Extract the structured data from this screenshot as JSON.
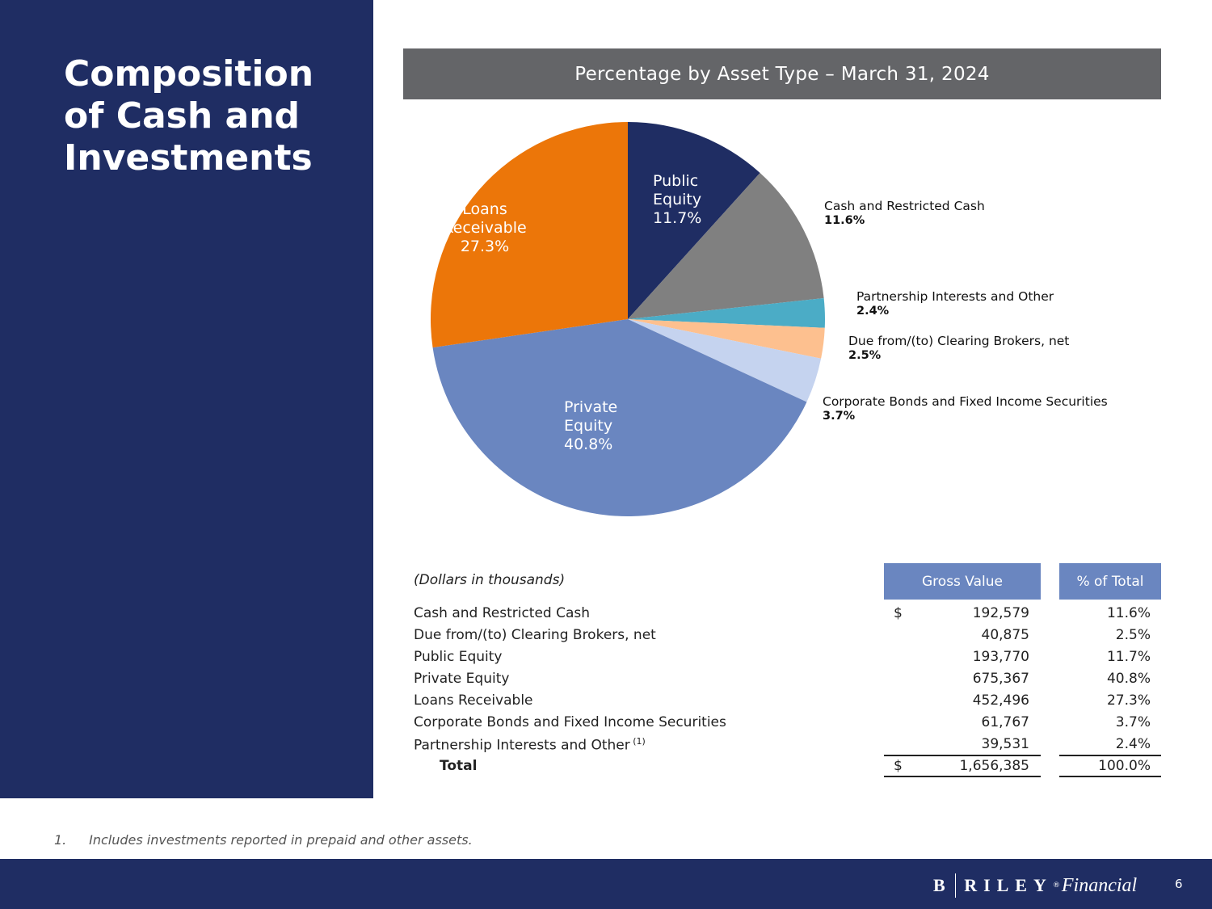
{
  "page": {
    "title": "Composition of Cash and Investments",
    "footnote_number": "1.",
    "footnote_text": "Includes investments reported in prepaid and other assets.",
    "page_number": "6"
  },
  "logo": {
    "letter": "B",
    "word": "RILEY",
    "mark": "®",
    "suffix": "Financial"
  },
  "colors": {
    "navy": "#1f2d63",
    "header_gray": "#646568",
    "table_head": "#6a86c0"
  },
  "chart_data": {
    "type": "pie",
    "title": "Percentage by Asset Type – March 31, 2024",
    "start_angle_deg": 0,
    "slices": [
      {
        "name": "Public Equity",
        "label_lines": [
          "Public",
          "Equity"
        ],
        "value": 11.7,
        "display": "11.7%",
        "color": "#1f2d63",
        "label_inside": true,
        "text_color": "#ffffff"
      },
      {
        "name": "Cash and Restricted Cash",
        "label_lines": [
          "Cash and Restricted Cash"
        ],
        "value": 11.6,
        "display": "11.6%",
        "color": "#808080",
        "label_inside": false
      },
      {
        "name": "Partnership Interests and Other",
        "label_lines": [
          "Partnership Interests and Other"
        ],
        "value": 2.4,
        "display": "2.4%",
        "color": "#4bacc6",
        "label_inside": false
      },
      {
        "name": "Due from/(to) Clearing Brokers, net",
        "label_lines": [
          "Due from/(to) Clearing Brokers, net"
        ],
        "value": 2.5,
        "display": "2.5%",
        "color": "#fdc08f",
        "label_inside": false
      },
      {
        "name": "Corporate Bonds and Fixed Income Securities",
        "label_lines": [
          "Corporate Bonds and Fixed Income Securities"
        ],
        "value": 3.7,
        "display": "3.7%",
        "color": "#c5d3ef",
        "label_inside": false
      },
      {
        "name": "Private Equity",
        "label_lines": [
          "Private",
          "Equity"
        ],
        "value": 40.8,
        "display": "40.8%",
        "color": "#6a86c0",
        "label_inside": true,
        "text_color": "#ffffff"
      },
      {
        "name": "Loans Receivable",
        "label_lines": [
          "Loans",
          "Receivable"
        ],
        "value": 27.3,
        "display": "27.3%",
        "color": "#ec7609",
        "label_inside": true,
        "text_color": "#ffffff"
      }
    ]
  },
  "table": {
    "note": "(Dollars in thousands)",
    "headers": {
      "gross": "Gross Value",
      "pct": "% of Total"
    },
    "currency": "$",
    "footnote_marker": "(1)",
    "rows": [
      {
        "label": "Cash and Restricted Cash",
        "gross": "192,579",
        "pct": "11.6%"
      },
      {
        "label": "Due from/(to) Clearing Brokers, net",
        "gross": "40,875",
        "pct": "2.5%"
      },
      {
        "label": "Public Equity",
        "gross": "193,770",
        "pct": "11.7%"
      },
      {
        "label": "Private Equity",
        "gross": "675,367",
        "pct": "40.8%"
      },
      {
        "label": "Loans Receivable",
        "gross": "452,496",
        "pct": "27.3%"
      },
      {
        "label": "Corporate Bonds and Fixed Income Securities",
        "gross": "61,767",
        "pct": "3.7%"
      },
      {
        "label": "Partnership Interests and Other",
        "gross": "39,531",
        "pct": "2.4%"
      }
    ],
    "total": {
      "label": "Total",
      "gross": "1,656,385",
      "pct": "100.0%"
    }
  }
}
